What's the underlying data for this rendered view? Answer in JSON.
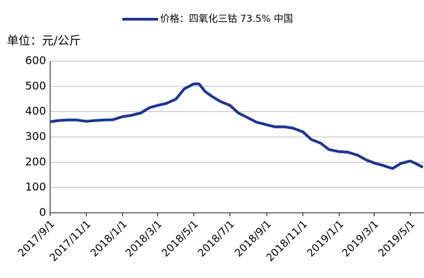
{
  "chart_data": {
    "type": "line",
    "y_label": "单位：元/公斤",
    "x": [
      "2017/9/1",
      "2017/9/15",
      "2017/10/1",
      "2017/10/15",
      "2017/11/1",
      "2017/11/15",
      "2017/12/1",
      "2017/12/15",
      "2018/1/1",
      "2018/1/15",
      "2018/2/1",
      "2018/2/15",
      "2018/3/1",
      "2018/3/15",
      "2018/4/1",
      "2018/4/15",
      "2018/5/1",
      "2018/5/10",
      "2018/5/20",
      "2018/6/1",
      "2018/6/15",
      "2018/7/1",
      "2018/7/15",
      "2018/8/1",
      "2018/8/15",
      "2018/9/1",
      "2018/9/15",
      "2018/10/1",
      "2018/10/15",
      "2018/11/1",
      "2018/11/15",
      "2018/12/1",
      "2018/12/15",
      "2019/1/1",
      "2019/1/15",
      "2019/2/1",
      "2019/2/15",
      "2019/3/1",
      "2019/3/15",
      "2019/4/1",
      "2019/4/15",
      "2019/5/1",
      "2019/5/10",
      "2019/5/22"
    ],
    "series": [
      {
        "name": "价格：四氧化三钴 73.5% 中国",
        "color": "#1c3591",
        "values": [
          360,
          365,
          367,
          367,
          362,
          365,
          367,
          368,
          380,
          385,
          395,
          415,
          425,
          432,
          450,
          490,
          510,
          510,
          480,
          460,
          440,
          425,
          395,
          375,
          358,
          348,
          340,
          340,
          335,
          320,
          290,
          275,
          250,
          242,
          240,
          228,
          210,
          197,
          188,
          175,
          195,
          205,
          195,
          180
        ]
      }
    ],
    "xlim": [
      "2017/9/1",
      "2019/5/24"
    ],
    "xticks": [
      "2017/9/1",
      "2017/11/1",
      "2018/1/1",
      "2018/3/1",
      "2018/5/1",
      "2018/7/1",
      "2018/9/1",
      "2018/11/1",
      "2019/1/1",
      "2019/3/1",
      "2019/5/1"
    ],
    "ylim": [
      0,
      600
    ],
    "yticks": [
      0,
      100,
      200,
      300,
      400,
      500,
      600
    ],
    "grid": true,
    "legend": "top"
  }
}
